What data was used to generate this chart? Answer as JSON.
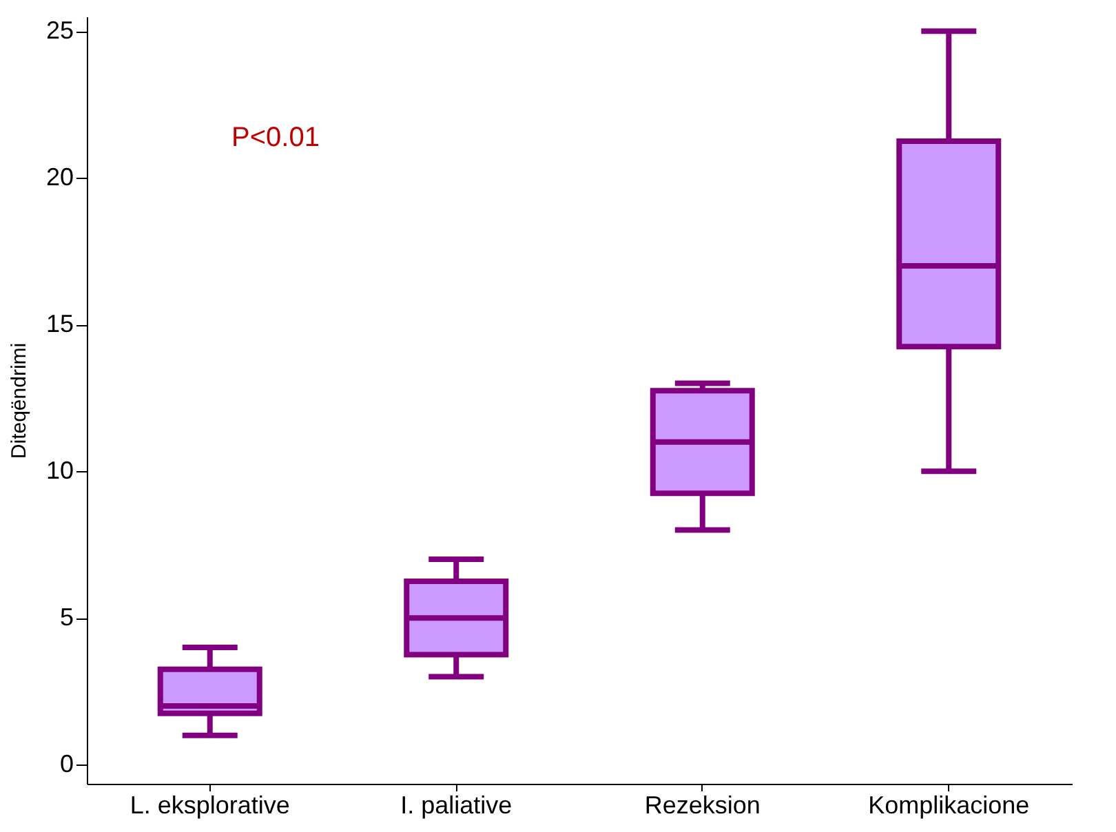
{
  "chart_data": {
    "type": "box",
    "ylabel": "Diteqëndrimi",
    "categories": [
      "L. eksplorative",
      "I. paliative",
      "Rezeksion",
      "Komplikacione"
    ],
    "series": [
      {
        "color": "#cc99ff",
        "boxes": [
          {
            "low": 1,
            "q1": 1.75,
            "median": 2,
            "q3": 3.25,
            "high": 4
          },
          {
            "low": 3,
            "q1": 3.75,
            "median": 5,
            "q3": 6.25,
            "high": 7
          },
          {
            "low": 8,
            "q1": 9.25,
            "median": 11,
            "q3": 12.75,
            "high": 13
          },
          {
            "low": 10,
            "q1": 14.25,
            "median": 17,
            "q3": 21.25,
            "high": 25
          }
        ]
      }
    ],
    "ylim": [
      -0.65,
      25.5
    ],
    "yticks": [
      0,
      5,
      10,
      15,
      20,
      25
    ],
    "grid": false,
    "annotations": [
      "P<0.01"
    ]
  }
}
